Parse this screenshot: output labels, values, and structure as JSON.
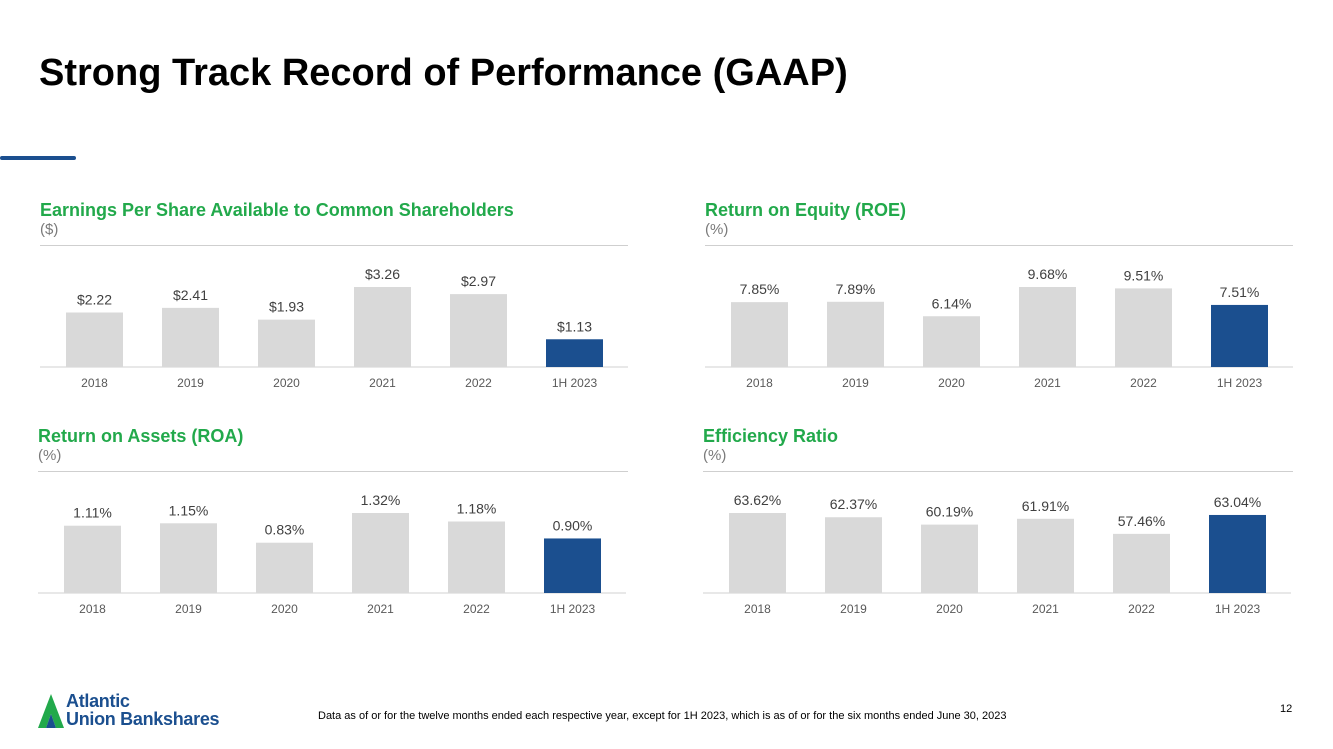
{
  "title": "Strong Track Record of Performance (GAAP)",
  "colors": {
    "accent": "#1b4f8f",
    "title_green": "#22a94b",
    "bar_gray": "#d9d9d9",
    "highlight": "#1b4f8f"
  },
  "chart_data": [
    {
      "type": "bar",
      "title": "Earnings Per Share Available to Common Shareholders",
      "subtitle": "($)",
      "categories": [
        "2018",
        "2019",
        "2020",
        "2021",
        "2022",
        "1H 2023"
      ],
      "values": [
        2.22,
        2.41,
        1.93,
        3.26,
        2.97,
        1.13
      ],
      "labels": [
        "$2.22",
        "$2.41",
        "$1.93",
        "$3.26",
        "$2.97",
        "$1.13"
      ],
      "highlight_index": 5
    },
    {
      "type": "bar",
      "title": "Return on Equity (ROE)",
      "subtitle": "(%)",
      "categories": [
        "2018",
        "2019",
        "2020",
        "2021",
        "2022",
        "1H 2023"
      ],
      "values": [
        7.85,
        7.89,
        6.14,
        9.68,
        9.51,
        7.51
      ],
      "labels": [
        "7.85%",
        "7.89%",
        "6.14%",
        "9.68%",
        "9.51%",
        "7.51%"
      ],
      "highlight_index": 5
    },
    {
      "type": "bar",
      "title": "Return on Assets (ROA)",
      "subtitle": "(%)",
      "categories": [
        "2018",
        "2019",
        "2020",
        "2021",
        "2022",
        "1H 2023"
      ],
      "values": [
        1.11,
        1.15,
        0.83,
        1.32,
        1.18,
        0.9
      ],
      "labels": [
        "1.11%",
        "1.15%",
        "0.83%",
        "1.32%",
        "1.18%",
        "0.90%"
      ],
      "highlight_index": 5
    },
    {
      "type": "bar",
      "title": "Efficiency Ratio",
      "subtitle": "(%)",
      "categories": [
        "2018",
        "2019",
        "2020",
        "2021",
        "2022",
        "1H 2023"
      ],
      "values": [
        63.62,
        62.37,
        60.19,
        61.91,
        57.46,
        63.04
      ],
      "labels": [
        "63.62%",
        "62.37%",
        "60.19%",
        "61.91%",
        "57.46%",
        "63.04%"
      ],
      "ylim": [
        40,
        70
      ],
      "highlight_index": 5
    }
  ],
  "footer": {
    "note": "Data as of or for the twelve months ended each respective year, except for 1H 2023, which is as of or for the six months ended June 30, 2023",
    "page_number": "12",
    "logo_line1": "Atlantic",
    "logo_line2": "Union Bankshares"
  }
}
